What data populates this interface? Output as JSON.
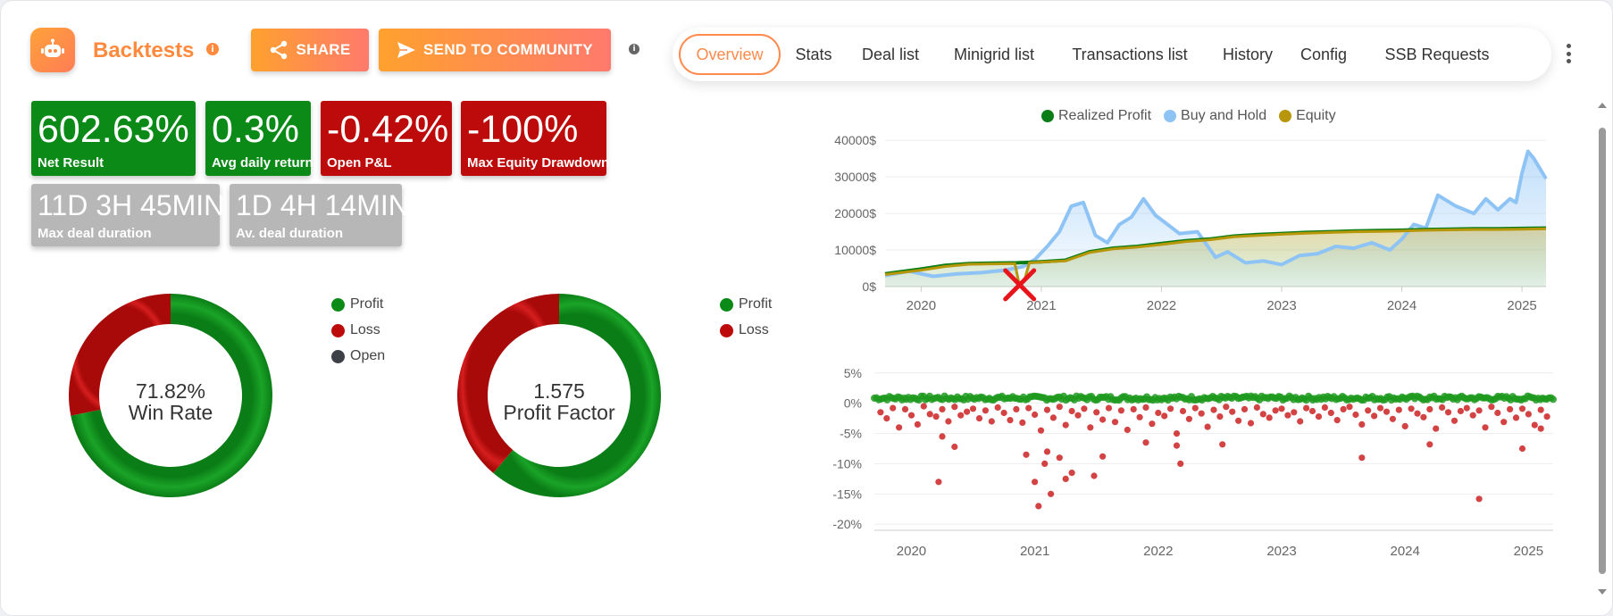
{
  "header": {
    "app_title": "Backtests",
    "share_label": "SHARE",
    "community_label": "SEND TO COMMUNITY",
    "tabs": [
      {
        "label": "Overview",
        "active": true
      },
      {
        "label": "Stats"
      },
      {
        "label": "Deal list"
      },
      {
        "label": "Minigrid list"
      },
      {
        "label": "Transactions list"
      },
      {
        "label": "History"
      },
      {
        "label": "Config"
      },
      {
        "label": "SSB Requests"
      }
    ]
  },
  "stats": {
    "net_result": {
      "value": "602.63%",
      "label": "Net Result"
    },
    "avg_daily_return": {
      "value": "0.3%",
      "label": "Avg daily return"
    },
    "open_pnl": {
      "value": "-0.42%",
      "label": "Open P&L"
    },
    "max_equity_drawdown": {
      "value": "-100%",
      "label": "Max Equity Drawdown"
    },
    "max_deal_duration": {
      "value": "11D 3H 45MIN",
      "label": "Max deal duration"
    },
    "av_deal_duration": {
      "value": "1D 4H 14MIN",
      "label": "Av. deal duration"
    }
  },
  "colors": {
    "profit": "#0b8a18",
    "loss": "#bd0a0a",
    "open": "#3d4047",
    "buy_hold": "#8ec4f5",
    "equity": "#b8960a",
    "accent": "#ff8a3d"
  },
  "chart_data": [
    {
      "type": "pie",
      "variant": "donut",
      "center_value": "71.82%",
      "center_label": "Win Rate",
      "legend": [
        "Profit",
        "Loss",
        "Open"
      ],
      "slices": [
        {
          "name": "Profit",
          "value": 71.82
        },
        {
          "name": "Loss",
          "value": 28.18
        },
        {
          "name": "Open",
          "value": 0
        }
      ]
    },
    {
      "type": "pie",
      "variant": "donut",
      "center_value": "1.575",
      "center_label": "Profit Factor",
      "legend": [
        "Profit",
        "Loss"
      ],
      "slices": [
        {
          "name": "Profit",
          "value": 61.2
        },
        {
          "name": "Loss",
          "value": 38.8
        }
      ]
    },
    {
      "type": "area",
      "legend": [
        "Realized Profit",
        "Buy and Hold",
        "Equity"
      ],
      "ylim": [
        0,
        42000
      ],
      "xlim": [
        2019.7,
        2025.2
      ],
      "y_ticks": [
        0,
        10000,
        20000,
        30000,
        40000
      ],
      "y_tick_labels": [
        "0$",
        "10000$",
        "20000$",
        "30000$",
        "40000$"
      ],
      "x_ticks": [
        2020,
        2021,
        2022,
        2023,
        2024,
        2025
      ],
      "x_tick_labels": [
        "2020",
        "2021",
        "2022",
        "2023",
        "2024",
        "2025"
      ],
      "series": [
        {
          "name": "Buy and Hold",
          "x": [
            2019.7,
            2019.9,
            2020.1,
            2020.3,
            2020.5,
            2020.7,
            2020.85,
            2020.95,
            2021.05,
            2021.15,
            2021.25,
            2021.35,
            2021.45,
            2021.55,
            2021.65,
            2021.75,
            2021.85,
            2021.95,
            2022.05,
            2022.15,
            2022.3,
            2022.45,
            2022.55,
            2022.7,
            2022.85,
            2023.0,
            2023.15,
            2023.3,
            2023.45,
            2023.6,
            2023.75,
            2023.9,
            2024.0,
            2024.1,
            2024.2,
            2024.3,
            2024.45,
            2024.6,
            2024.7,
            2024.8,
            2024.9,
            2024.95,
            2025.0,
            2025.05,
            2025.1,
            2025.2
          ],
          "y": [
            3000,
            4200,
            2800,
            3500,
            3800,
            4500,
            5500,
            7500,
            11000,
            15000,
            22000,
            23000,
            14000,
            12000,
            17000,
            19000,
            24000,
            19500,
            17000,
            14500,
            15000,
            8000,
            9500,
            6500,
            7000,
            6000,
            8500,
            9000,
            11000,
            10500,
            12000,
            10000,
            13000,
            17000,
            16000,
            25000,
            22000,
            20000,
            24000,
            21000,
            24000,
            23000,
            31000,
            37000,
            35000,
            29500
          ]
        },
        {
          "name": "Realized Profit",
          "x": [
            2019.7,
            2020.0,
            2020.2,
            2020.4,
            2020.6,
            2020.8,
            2021.0,
            2021.2,
            2021.4,
            2021.6,
            2021.8,
            2022.0,
            2022.2,
            2022.4,
            2022.6,
            2022.8,
            2023.0,
            2023.2,
            2023.4,
            2023.6,
            2023.8,
            2024.0,
            2024.2,
            2024.4,
            2024.6,
            2024.8,
            2025.0,
            2025.2
          ],
          "y": [
            3500,
            4800,
            5800,
            6300,
            6400,
            6500,
            6800,
            7200,
            9500,
            10500,
            11000,
            11800,
            12500,
            13000,
            13800,
            14200,
            14500,
            14800,
            15000,
            15200,
            15300,
            15400,
            15600,
            15700,
            15800,
            15800,
            15900,
            16000
          ]
        },
        {
          "name": "Equity",
          "x": [
            2019.7,
            2020.0,
            2020.2,
            2020.4,
            2020.6,
            2020.78,
            2020.82,
            2020.86,
            2020.9,
            2021.0,
            2021.2,
            2021.4,
            2021.6,
            2021.8,
            2022.0,
            2022.2,
            2022.4,
            2022.6,
            2022.8,
            2023.0,
            2023.2,
            2023.4,
            2023.6,
            2023.8,
            2024.0,
            2024.2,
            2024.4,
            2024.6,
            2024.8,
            2025.0,
            2025.2
          ],
          "y": [
            3300,
            4500,
            5500,
            6100,
            6200,
            6300,
            0,
            1800,
            6500,
            6700,
            7000,
            9300,
            10300,
            10800,
            11500,
            12300,
            12800,
            13600,
            14000,
            14300,
            14600,
            14800,
            15000,
            15100,
            15200,
            15400,
            15500,
            15600,
            15600,
            15700,
            15800
          ]
        }
      ],
      "annotations": [
        {
          "type": "marker",
          "shape": "x",
          "x": 2020.82,
          "y": 0
        }
      ]
    },
    {
      "type": "scatter",
      "ylim": [
        -21,
        6
      ],
      "xlim": [
        2019.7,
        2025.2
      ],
      "y_ticks": [
        5,
        0,
        -5,
        -10,
        -15,
        -20
      ],
      "y_tick_labels": [
        "5%",
        "0%",
        "-5%",
        "-10%",
        "-15%",
        "-20%"
      ],
      "x_ticks": [
        2020,
        2021,
        2022,
        2023,
        2024,
        2025
      ],
      "x_tick_labels": [
        "2020",
        "2021",
        "2022",
        "2023",
        "2024",
        "2025"
      ],
      "series": [
        {
          "name": "Profit",
          "band_y": [
            0.5,
            1.2
          ],
          "x_range": [
            2019.7,
            2025.2
          ],
          "count": 320
        },
        {
          "name": "Loss",
          "x": [
            2019.75,
            2019.8,
            2019.85,
            2019.9,
            2019.95,
            2020.0,
            2020.05,
            2020.1,
            2020.15,
            2020.2,
            2020.25,
            2020.3,
            2020.35,
            2020.4,
            2020.45,
            2020.5,
            2020.55,
            2020.6,
            2020.65,
            2020.7,
            2020.75,
            2020.8,
            2020.85,
            2020.9,
            2020.95,
            2021.0,
            2021.05,
            2021.1,
            2021.15,
            2021.2,
            2021.25,
            2021.3,
            2021.35,
            2021.4,
            2021.45,
            2021.5,
            2021.55,
            2021.6,
            2021.65,
            2021.7,
            2021.75,
            2021.8,
            2021.85,
            2021.9,
            2021.95,
            2022.0,
            2022.05,
            2022.1,
            2022.15,
            2022.2,
            2022.25,
            2022.3,
            2022.35,
            2022.4,
            2022.45,
            2022.5,
            2022.55,
            2022.6,
            2022.65,
            2022.7,
            2022.75,
            2022.8,
            2022.85,
            2022.9,
            2022.95,
            2023.0,
            2023.05,
            2023.1,
            2023.15,
            2023.2,
            2023.25,
            2023.3,
            2023.35,
            2023.4,
            2023.45,
            2023.5,
            2023.55,
            2023.6,
            2023.65,
            2023.7,
            2023.75,
            2023.8,
            2023.85,
            2023.9,
            2023.95,
            2024.0,
            2024.05,
            2024.1,
            2024.15,
            2024.2,
            2024.25,
            2024.3,
            2024.35,
            2024.4,
            2024.45,
            2024.5,
            2024.55,
            2024.6,
            2024.65,
            2024.7,
            2024.75,
            2024.8,
            2024.85,
            2024.9,
            2024.95,
            2025.0,
            2025.05,
            2025.1,
            2025.15,
            2020.22,
            2020.25,
            2020.35,
            2020.93,
            2021.0,
            2021.03,
            2021.08,
            2021.1,
            2021.13,
            2021.2,
            2021.25,
            2021.3,
            2021.48,
            2021.55,
            2021.9,
            2022.18,
            2022.15,
            2022.52,
            2023.65,
            2024.2,
            2024.6,
            2024.95,
            2025.1
          ],
          "y": [
            -1.5,
            -2.5,
            -0.8,
            -4,
            -1,
            -2,
            -3.5,
            -0.5,
            -1.8,
            -2.2,
            -1,
            -3,
            -0.6,
            -2,
            -1.4,
            -0.9,
            -2.5,
            -1.2,
            -3,
            -0.7,
            -1.6,
            -2.8,
            -1,
            -3.2,
            -0.8,
            -1.9,
            -4.5,
            -1.1,
            -2.4,
            -0.6,
            -3.6,
            -1.3,
            -2,
            -0.9,
            -4,
            -1.5,
            -2.7,
            -0.8,
            -3.1,
            -1.2,
            -4.4,
            -1,
            -2.3,
            -0.7,
            -3.4,
            -1.6,
            -2.1,
            -0.9,
            -5,
            -1.3,
            -2.6,
            -0.8,
            -1.7,
            -3.9,
            -1.1,
            -2.2,
            -0.6,
            -1.4,
            -2.9,
            -1,
            -3.3,
            -0.7,
            -1.8,
            -2.4,
            -1.2,
            -0.9,
            -2,
            -1.5,
            -3,
            -0.8,
            -1.3,
            -2.2,
            -0.7,
            -1.6,
            -2.8,
            -1,
            -0.6,
            -1.9,
            -3.5,
            -1.2,
            -2.1,
            -0.8,
            -1.4,
            -2.6,
            -1.1,
            -3.8,
            -0.9,
            -1.7,
            -2.3,
            -1,
            -4.2,
            -0.7,
            -1.5,
            -2.9,
            -1.3,
            -0.8,
            -2,
            -1.2,
            -4,
            -0.6,
            -1.6,
            -3.1,
            -1,
            -2.4,
            -0.9,
            -1.8,
            -3.6,
            -1.1,
            -2.2,
            -13,
            -5.5,
            -7.2,
            -8.5,
            -13,
            -17,
            -10,
            -8,
            -15,
            -9,
            -12.5,
            -11.5,
            -12,
            -8.8,
            -6.5,
            -10,
            -7,
            -6.8,
            -9,
            -6.8,
            -15.8,
            -7.5,
            -4.2
          ]
        }
      ]
    }
  ]
}
